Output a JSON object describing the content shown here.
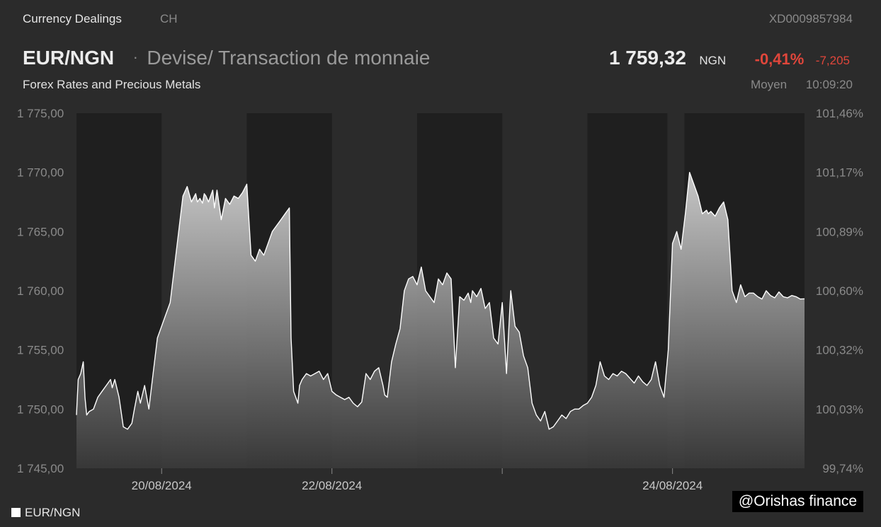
{
  "header": {
    "source": "Currency Dealings",
    "country": "CH",
    "isin": "XD0009857984",
    "pair": "EUR/NGN",
    "separator": "·",
    "description": "Devise/ Transaction de monnaie",
    "subtitle": "Forex Rates and Precious Metals",
    "price": "1 759,32",
    "currency": "NGN",
    "change_pct": "-0,41%",
    "change_abs": "-7,205",
    "price_type": "Moyen",
    "time": "10:09:20"
  },
  "legend": {
    "label": "EUR/NGN"
  },
  "credit": "@Orishas finance",
  "colors": {
    "negative": "#e0463b",
    "background": "#2b2b2b",
    "shade": "#1f1f1f",
    "line": "#ffffff"
  },
  "chart_data": {
    "type": "area",
    "series": [
      {
        "name": "EUR/NGN",
        "x": [
          0,
          0.02,
          0.05,
          0.08,
          0.1,
          0.12,
          0.15,
          0.2,
          0.25,
          0.3,
          0.35,
          0.4,
          0.42,
          0.45,
          0.5,
          0.55,
          0.6,
          0.65,
          0.68,
          0.72,
          0.75,
          0.8,
          0.85,
          0.9,
          0.95,
          1.0,
          1.05,
          1.1,
          1.2,
          1.25,
          1.3,
          1.35,
          1.4,
          1.42,
          1.45,
          1.48,
          1.5,
          1.52,
          1.55,
          1.6,
          1.62,
          1.65,
          1.7,
          1.75,
          1.8,
          1.85,
          1.9,
          1.95,
          2.0,
          2.05,
          2.1,
          2.15,
          2.2,
          2.25,
          2.3,
          2.35,
          2.4,
          2.45,
          2.5,
          2.52,
          2.55,
          2.6,
          2.62,
          2.65,
          2.7,
          2.75,
          2.8,
          2.85,
          2.9,
          2.95,
          3.0,
          3.05,
          3.1,
          3.15,
          3.2,
          3.25,
          3.3,
          3.35,
          3.4,
          3.45,
          3.5,
          3.55,
          3.6,
          3.62,
          3.65,
          3.7,
          3.75,
          3.8,
          3.85,
          3.9,
          3.95,
          4.0,
          4.05,
          4.1,
          4.15,
          4.2,
          4.25,
          4.3,
          4.35,
          4.4,
          4.45,
          4.5,
          4.55,
          4.6,
          4.63,
          4.65,
          4.7,
          4.75,
          4.8,
          4.85,
          4.9,
          4.95,
          5.0,
          5.05,
          5.1,
          5.15,
          5.2,
          5.25,
          5.3,
          5.35,
          5.4,
          5.45,
          5.5,
          5.52,
          5.55,
          5.6,
          5.65,
          5.7,
          5.75,
          5.8,
          5.85,
          5.9,
          5.95,
          6.0,
          6.05,
          6.1,
          6.15,
          6.2,
          6.25,
          6.3,
          6.35,
          6.4,
          6.45,
          6.5,
          6.55,
          6.6,
          6.65,
          6.7,
          6.75,
          6.8,
          6.85,
          6.9,
          6.95,
          7.0,
          7.05,
          7.1,
          7.15,
          7.2,
          7.25,
          7.3,
          7.35,
          7.4,
          7.42,
          7.45,
          7.5,
          7.55,
          7.6,
          7.65,
          7.7,
          7.75,
          7.8,
          7.85,
          7.9,
          7.95,
          8.0,
          8.05,
          8.1,
          8.15,
          8.2,
          8.25,
          8.3,
          8.35,
          8.4,
          8.45,
          8.5,
          8.55
        ],
        "values": [
          1749.5,
          1752.5,
          1753.0,
          1754.0,
          1751.0,
          1749.5,
          1749.8,
          1750.0,
          1751.0,
          1751.5,
          1752.0,
          1752.5,
          1751.8,
          1752.5,
          1751.0,
          1748.5,
          1748.3,
          1748.8,
          1750.0,
          1751.5,
          1750.5,
          1752.0,
          1750.0,
          1753.0,
          1756.0,
          1757.0,
          1758.0,
          1759.0,
          1765.0,
          1768.0,
          1768.8,
          1767.5,
          1768.2,
          1767.5,
          1767.8,
          1767.4,
          1768.2,
          1768.0,
          1767.5,
          1768.5,
          1767.0,
          1768.5,
          1766.0,
          1767.8,
          1767.3,
          1768.0,
          1767.8,
          1768.3,
          1769.0,
          1763.0,
          1762.5,
          1763.5,
          1763.0,
          1764.0,
          1765.0,
          1765.5,
          1766.0,
          1766.5,
          1767.0,
          1756.0,
          1751.5,
          1750.5,
          1752.0,
          1752.5,
          1753.0,
          1752.8,
          1753.0,
          1753.2,
          1752.5,
          1753.0,
          1751.5,
          1751.2,
          1751.0,
          1750.8,
          1751.0,
          1750.5,
          1750.2,
          1750.6,
          1753.0,
          1752.5,
          1753.2,
          1753.5,
          1752.0,
          1751.2,
          1751.0,
          1754.0,
          1755.5,
          1756.8,
          1760.0,
          1761.0,
          1761.2,
          1760.5,
          1762.0,
          1760.0,
          1759.5,
          1759.0,
          1761.0,
          1760.5,
          1761.5,
          1761.0,
          1753.5,
          1759.5,
          1759.2,
          1759.8,
          1759.0,
          1760.0,
          1759.5,
          1760.2,
          1758.5,
          1759.0,
          1756.0,
          1755.5,
          1759.0,
          1753.0,
          1760.0,
          1757.0,
          1756.5,
          1754.5,
          1753.5,
          1750.5,
          1749.5,
          1749.0,
          1749.8,
          1749.2,
          1748.3,
          1748.5,
          1749.0,
          1749.5,
          1749.2,
          1749.8,
          1750.0,
          1750.0,
          1750.3,
          1750.5,
          1751.0,
          1752.0,
          1754.0,
          1752.8,
          1752.5,
          1753.0,
          1752.8,
          1753.2,
          1753.0,
          1752.6,
          1752.2,
          1752.8,
          1752.3,
          1752.0,
          1752.5,
          1754.0,
          1752.0,
          1751.0,
          1755.0,
          1764.0,
          1765.0,
          1763.5,
          1766.5,
          1770.0,
          1769.0,
          1768.0,
          1766.5,
          1766.8,
          1766.5,
          1766.7,
          1766.3,
          1767.0,
          1767.5,
          1766.0,
          1760.0,
          1759.0,
          1760.5,
          1759.5,
          1759.8,
          1759.8,
          1759.5,
          1759.3,
          1760.0,
          1759.6,
          1759.4,
          1759.9,
          1759.5,
          1759.4,
          1759.6,
          1759.5,
          1759.3,
          1759.32
        ]
      }
    ],
    "x_ticks": [
      {
        "pos": 1.0,
        "label": "20/08/2024"
      },
      {
        "pos": 3.0,
        "label": "22/08/2024"
      },
      {
        "pos": 5.0,
        "label": ""
      },
      {
        "pos": 7.0,
        "label": "24/08/2024"
      }
    ],
    "xlim": [
      0,
      8.55
    ],
    "shaded_intervals": [
      [
        0,
        1.0
      ],
      [
        2.0,
        3.0
      ],
      [
        4.0,
        5.0
      ],
      [
        6.0,
        6.94
      ],
      [
        7.14,
        8.55
      ]
    ],
    "ylabel_left": "",
    "ylim": [
      1745,
      1775
    ],
    "y_ticks_left": [
      {
        "value": 1775,
        "label": "1 775,00"
      },
      {
        "value": 1770,
        "label": "1 770,00"
      },
      {
        "value": 1765,
        "label": "1 765,00"
      },
      {
        "value": 1760,
        "label": "1 760,00"
      },
      {
        "value": 1755,
        "label": "1 755,00"
      },
      {
        "value": 1750,
        "label": "1 750,00"
      },
      {
        "value": 1745,
        "label": "1 745,00"
      }
    ],
    "y_ticks_right": [
      {
        "value": 1775,
        "label": "101,46%"
      },
      {
        "value": 1770,
        "label": "101,17%"
      },
      {
        "value": 1765,
        "label": "100,89%"
      },
      {
        "value": 1760,
        "label": "100,60%"
      },
      {
        "value": 1755,
        "label": "100,32%"
      },
      {
        "value": 1750,
        "label": "100,03%"
      },
      {
        "value": 1745,
        "label": "99,74%"
      }
    ],
    "grid": false,
    "legend_position": "bottom-left"
  }
}
